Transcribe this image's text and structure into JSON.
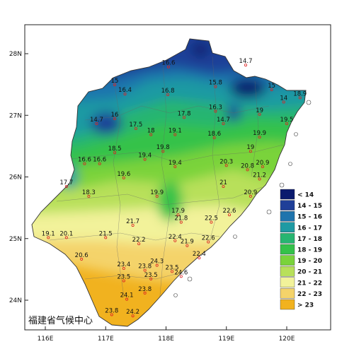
{
  "credit": "福建省气候中心",
  "axes": {
    "x_ticks": [
      "116E",
      "117E",
      "118E",
      "119E",
      "120E"
    ],
    "y_ticks": [
      "28N",
      "27N",
      "26N",
      "25N",
      "24N"
    ]
  },
  "legend": [
    {
      "label": "< 14",
      "color": "#0a1a6e"
    },
    {
      "label": "14 - 15",
      "color": "#1f3f98"
    },
    {
      "label": "15 - 16",
      "color": "#1f74ad"
    },
    {
      "label": "16 - 17",
      "color": "#1f9aa3"
    },
    {
      "label": "17 - 18",
      "color": "#27b571"
    },
    {
      "label": "18 - 19",
      "color": "#34c24a"
    },
    {
      "label": "19 - 20",
      "color": "#7ad33b"
    },
    {
      "label": "20 - 21",
      "color": "#b8e05a"
    },
    {
      "label": "21 - 22",
      "color": "#f2f29a"
    },
    {
      "label": "22 - 23",
      "color": "#f4d36a"
    },
    {
      "label": "> 23",
      "color": "#f1b21f"
    }
  ],
  "stations": [
    {
      "v": "14.7",
      "lon": 119.32,
      "lat": 27.85
    },
    {
      "v": "16.6",
      "lon": 118.04,
      "lat": 27.82
    },
    {
      "v": "15",
      "lon": 117.15,
      "lat": 27.53
    },
    {
      "v": "16.4",
      "lon": 117.32,
      "lat": 27.38
    },
    {
      "v": "16.8",
      "lon": 118.03,
      "lat": 27.37
    },
    {
      "v": "15.8",
      "lon": 118.82,
      "lat": 27.5
    },
    {
      "v": "15",
      "lon": 119.75,
      "lat": 27.45
    },
    {
      "v": "14",
      "lon": 119.95,
      "lat": 27.25
    },
    {
      "v": "18.9",
      "lon": 120.22,
      "lat": 27.32
    },
    {
      "v": "16.3",
      "lon": 118.82,
      "lat": 27.1
    },
    {
      "v": "19",
      "lon": 119.55,
      "lat": 27.05
    },
    {
      "v": "14.7",
      "lon": 116.85,
      "lat": 26.9
    },
    {
      "v": "16",
      "lon": 117.15,
      "lat": 26.98
    },
    {
      "v": "17.8",
      "lon": 118.3,
      "lat": 27.0
    },
    {
      "v": "17.5",
      "lon": 117.5,
      "lat": 26.82
    },
    {
      "v": "18",
      "lon": 117.75,
      "lat": 26.72
    },
    {
      "v": "19.1",
      "lon": 118.15,
      "lat": 26.72
    },
    {
      "v": "14.7",
      "lon": 118.95,
      "lat": 26.9
    },
    {
      "v": "19.5",
      "lon": 120.0,
      "lat": 26.9
    },
    {
      "v": "18.6",
      "lon": 118.8,
      "lat": 26.67
    },
    {
      "v": "19.9",
      "lon": 119.55,
      "lat": 26.68
    },
    {
      "v": "18.5",
      "lon": 117.15,
      "lat": 26.43
    },
    {
      "v": "19.8",
      "lon": 117.95,
      "lat": 26.45
    },
    {
      "v": "19.4",
      "lon": 117.65,
      "lat": 26.32
    },
    {
      "v": "19",
      "lon": 119.4,
      "lat": 26.45
    },
    {
      "v": "16.6",
      "lon": 116.65,
      "lat": 26.25
    },
    {
      "v": "16.6",
      "lon": 116.9,
      "lat": 26.25
    },
    {
      "v": "19.4",
      "lon": 118.15,
      "lat": 26.2
    },
    {
      "v": "20.3",
      "lon": 119.0,
      "lat": 26.22
    },
    {
      "v": "20.8",
      "lon": 119.35,
      "lat": 26.15
    },
    {
      "v": "20.9",
      "lon": 119.6,
      "lat": 26.2
    },
    {
      "v": "21.2",
      "lon": 119.55,
      "lat": 26.0
    },
    {
      "v": "19.6",
      "lon": 117.3,
      "lat": 26.02
    },
    {
      "v": "17.7",
      "lon": 116.35,
      "lat": 25.88
    },
    {
      "v": "18.3",
      "lon": 116.72,
      "lat": 25.72
    },
    {
      "v": "19.9",
      "lon": 117.85,
      "lat": 25.72
    },
    {
      "v": "21",
      "lon": 118.95,
      "lat": 25.88
    },
    {
      "v": "20.9",
      "lon": 119.4,
      "lat": 25.72
    },
    {
      "v": "17.9",
      "lon": 118.2,
      "lat": 25.42
    },
    {
      "v": "21.8",
      "lon": 118.25,
      "lat": 25.3
    },
    {
      "v": "22.5",
      "lon": 118.75,
      "lat": 25.3
    },
    {
      "v": "22.6",
      "lon": 119.05,
      "lat": 25.42
    },
    {
      "v": "21.7",
      "lon": 117.45,
      "lat": 25.25
    },
    {
      "v": "19.1",
      "lon": 116.05,
      "lat": 25.05
    },
    {
      "v": "20.1",
      "lon": 116.35,
      "lat": 25.05
    },
    {
      "v": "21.5",
      "lon": 117.0,
      "lat": 25.05
    },
    {
      "v": "22.2",
      "lon": 117.55,
      "lat": 24.95
    },
    {
      "v": "22.4",
      "lon": 118.15,
      "lat": 25.0
    },
    {
      "v": "21.9",
      "lon": 118.35,
      "lat": 24.92
    },
    {
      "v": "22.6",
      "lon": 118.7,
      "lat": 24.98
    },
    {
      "v": "22.4",
      "lon": 118.55,
      "lat": 24.72
    },
    {
      "v": "20.6",
      "lon": 116.6,
      "lat": 24.7
    },
    {
      "v": "24.3",
      "lon": 117.85,
      "lat": 24.6
    },
    {
      "v": "23.4",
      "lon": 117.3,
      "lat": 24.55
    },
    {
      "v": "23.8",
      "lon": 117.65,
      "lat": 24.52
    },
    {
      "v": "23.5",
      "lon": 118.1,
      "lat": 24.5
    },
    {
      "v": "23.5",
      "lon": 117.3,
      "lat": 24.35
    },
    {
      "v": "23.5",
      "lon": 117.75,
      "lat": 24.38
    },
    {
      "v": "24.6",
      "lon": 118.25,
      "lat": 24.42
    },
    {
      "v": "23.8",
      "lon": 117.65,
      "lat": 24.15
    },
    {
      "v": "24.1",
      "lon": 117.35,
      "lat": 24.05
    },
    {
      "v": "23.8",
      "lon": 117.1,
      "lat": 23.8
    },
    {
      "v": "24.2",
      "lon": 117.45,
      "lat": 23.78
    }
  ]
}
